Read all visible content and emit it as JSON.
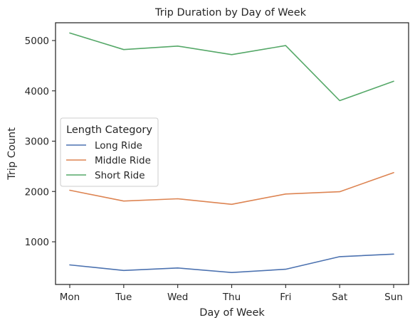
{
  "chart_data": {
    "type": "line",
    "title": "Trip Duration by Day of Week",
    "xlabel": "Day of Week",
    "ylabel": "Trip Count",
    "categories": [
      "Mon",
      "Tue",
      "Wed",
      "Thu",
      "Fri",
      "Sat",
      "Sun"
    ],
    "yticks": [
      1000,
      2000,
      3000,
      4000,
      5000
    ],
    "ylim": [
      130,
      5400
    ],
    "grid": false,
    "legend": {
      "title": "Length Category",
      "position": "center-left"
    },
    "series": [
      {
        "name": "Long Ride",
        "color": "#4c72b0",
        "values": [
          540,
          430,
          480,
          390,
          455,
          705,
          755
        ]
      },
      {
        "name": "Middle Ride",
        "color": "#dd8452",
        "values": [
          2025,
          1810,
          1855,
          1745,
          1950,
          1995,
          2375
        ]
      },
      {
        "name": "Short Ride",
        "color": "#55a868",
        "values": [
          5150,
          4820,
          4890,
          4720,
          4900,
          3805,
          4190
        ]
      }
    ]
  }
}
